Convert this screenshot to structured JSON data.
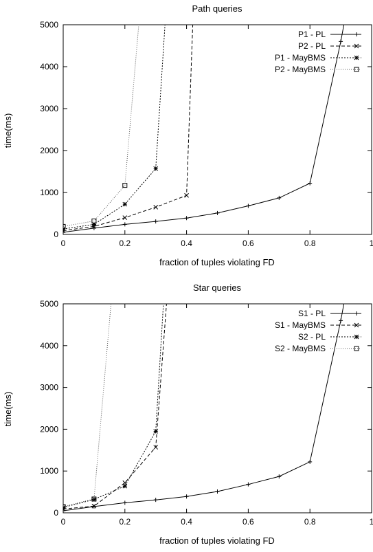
{
  "chart_data": [
    {
      "type": "line",
      "title": "Path queries",
      "xlabel": "fraction of tuples violating FD",
      "ylabel": "time(ms)",
      "xlim": [
        0,
        1
      ],
      "ylim": [
        0,
        5000
      ],
      "xticks": [
        0,
        0.2,
        0.4,
        0.6,
        0.8,
        1
      ],
      "yticks": [
        0,
        1000,
        2000,
        3000,
        4000,
        5000
      ],
      "xtick_labels": [
        "0",
        "0.2",
        "0.4",
        "0.6",
        "0.8",
        "1"
      ],
      "ytick_labels": [
        "0",
        "1000",
        "2000",
        "3000",
        "4000",
        "5000"
      ],
      "legend": "top-right",
      "grid": false,
      "series": [
        {
          "name": "P1 - PL",
          "style": "solid",
          "marker": "plus",
          "x": [
            0,
            0.1,
            0.2,
            0.3,
            0.4,
            0.5,
            0.6,
            0.7,
            0.8,
            0.9,
            0.91
          ],
          "y": [
            50,
            150,
            240,
            310,
            390,
            510,
            680,
            870,
            1220,
            4600,
            5000
          ]
        },
        {
          "name": "P2 - PL",
          "style": "dashed",
          "marker": "cross",
          "x": [
            0,
            0.1,
            0.2,
            0.3,
            0.4,
            0.42
          ],
          "y": [
            90,
            190,
            400,
            650,
            930,
            5000
          ]
        },
        {
          "name": "P1 - MayBMS",
          "style": "dotted",
          "marker": "star",
          "x": [
            0,
            0.1,
            0.2,
            0.3,
            0.33
          ],
          "y": [
            130,
            240,
            720,
            1570,
            5000
          ]
        },
        {
          "name": "P2 - MayBMS",
          "style": "finedotted",
          "marker": "square",
          "x": [
            0,
            0.1,
            0.2,
            0.245
          ],
          "y": [
            190,
            320,
            1170,
            5000
          ]
        }
      ]
    },
    {
      "type": "line",
      "title": "Star queries",
      "xlabel": "fraction of tuples violating FD",
      "ylabel": "time(ms)",
      "xlim": [
        0,
        1
      ],
      "ylim": [
        0,
        5000
      ],
      "xticks": [
        0,
        0.2,
        0.4,
        0.6,
        0.8,
        1
      ],
      "yticks": [
        0,
        1000,
        2000,
        3000,
        4000,
        5000
      ],
      "xtick_labels": [
        "0",
        "0.2",
        "0.4",
        "0.6",
        "0.8",
        "1"
      ],
      "ytick_labels": [
        "0",
        "1000",
        "2000",
        "3000",
        "4000",
        "5000"
      ],
      "legend": "top-right",
      "grid": false,
      "series": [
        {
          "name": "S1 - PL",
          "style": "solid",
          "marker": "plus",
          "x": [
            0,
            0.1,
            0.2,
            0.3,
            0.4,
            0.5,
            0.6,
            0.7,
            0.8,
            0.9,
            0.91
          ],
          "y": [
            50,
            150,
            240,
            310,
            390,
            510,
            680,
            870,
            1220,
            4600,
            5000
          ]
        },
        {
          "name": "S1 - MayBMS",
          "style": "dashed",
          "marker": "cross",
          "x": [
            0,
            0.1,
            0.2,
            0.3,
            0.335
          ],
          "y": [
            90,
            160,
            720,
            1570,
            5000
          ]
        },
        {
          "name": "S2 - PL",
          "style": "dotted",
          "marker": "star",
          "x": [
            0,
            0.1,
            0.2,
            0.3,
            0.325
          ],
          "y": [
            130,
            320,
            640,
            1950,
            5000
          ]
        },
        {
          "name": "S2 - MayBMS",
          "style": "finedotted",
          "marker": "square",
          "x": [
            0,
            0.1,
            0.155
          ],
          "y": [
            150,
            330,
            5000
          ]
        }
      ]
    }
  ]
}
